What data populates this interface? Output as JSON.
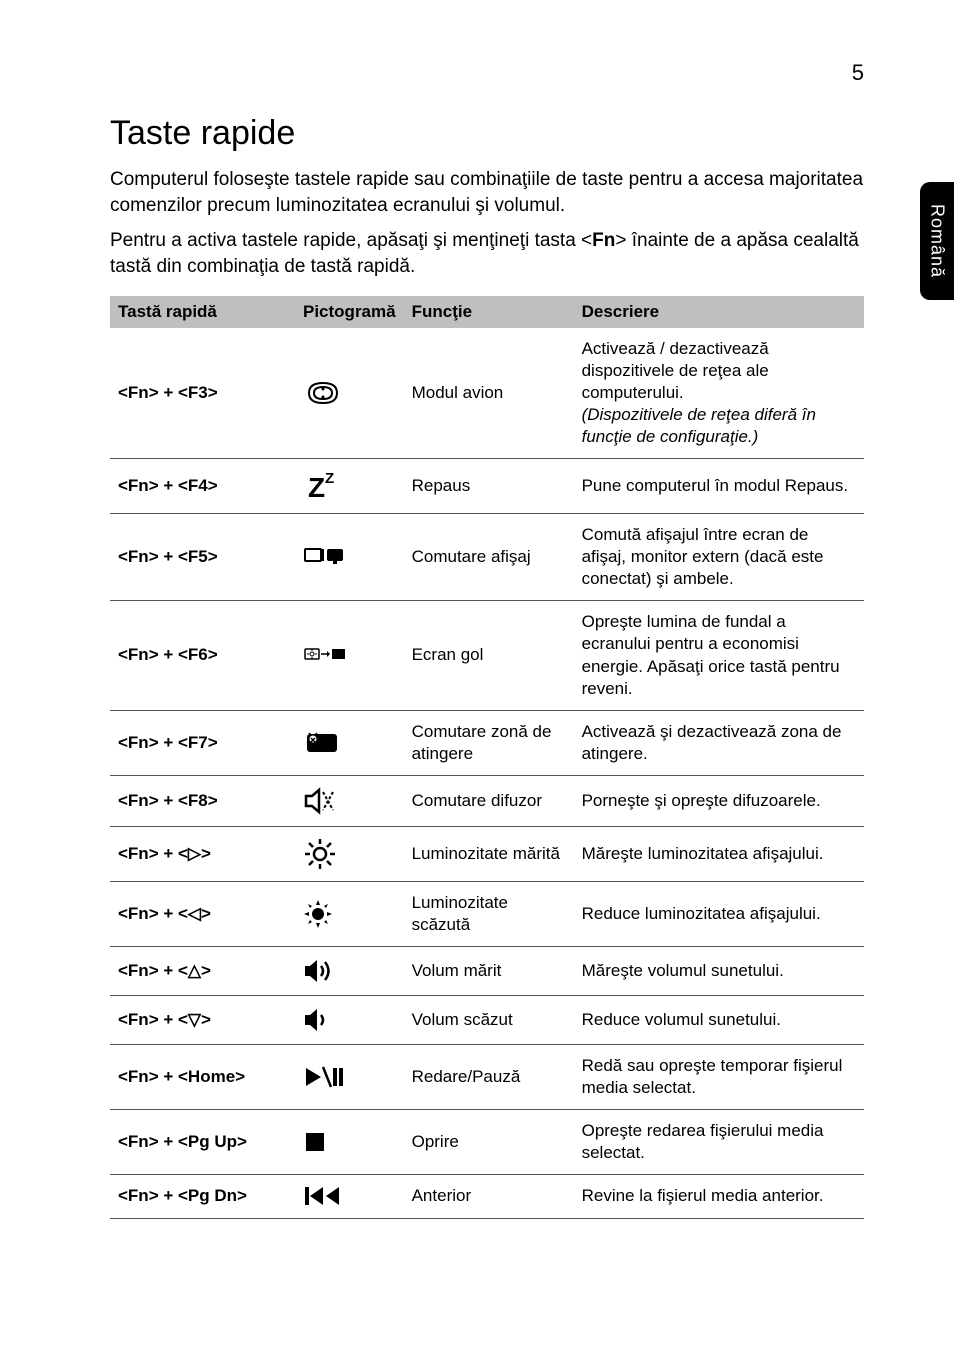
{
  "page_number": "5",
  "side_tab": "Română",
  "heading": "Taste rapide",
  "intro": [
    "Computerul foloseşte tastele rapide sau combinaţiile de taste pentru a accesa majoritatea comenzilor precum luminozitatea ecranului şi volumul.",
    "Pentru a activa tastele rapide, apăsaţi şi menţineţi tasta <__BOLD__Fn__ENDBOLD__> înainte de a apăsa cealaltă tastă din combinaţia de tastă rapidă."
  ],
  "table": {
    "headers": [
      "Tastă rapidă",
      "Pictogramă",
      "Funcţie",
      "Descriere"
    ],
    "rows": [
      {
        "key": "<Fn> + <F3>",
        "icon": "airplane",
        "func": "Modul avion",
        "desc": "Activează / dezactivează dispozitivele de reţea ale computerului.\n__ITALIC__(Dispozitivele de reţea diferă în funcţie de configuraţie.)__ENDITALIC__"
      },
      {
        "key": "<Fn> + <F4>",
        "icon": "sleep",
        "func": "Repaus",
        "desc": "Pune computerul în modul Repaus."
      },
      {
        "key": "<Fn> + <F5>",
        "icon": "display-switch",
        "func": "Comutare afişaj",
        "desc": "Comută afişajul între ecran de afişaj, monitor extern (dacă este conectat) şi ambele."
      },
      {
        "key": "<Fn> + <F6>",
        "icon": "blank-screen",
        "func": "Ecran gol",
        "desc": "Opreşte lumina de fundal a ecranului pentru a economisi energie. Apăsaţi orice tastă pentru reveni."
      },
      {
        "key": "<Fn> + <F7>",
        "icon": "touchpad",
        "func": "Comutare zonă de atingere",
        "desc": "Activează şi dezactivează zona de atingere."
      },
      {
        "key": "<Fn> + <F8>",
        "icon": "speaker-toggle",
        "func": "Comutare difuzor",
        "desc": "Porneşte şi opreşte difuzoarele."
      },
      {
        "key": "<Fn> + <▷>",
        "icon": "brightness-up",
        "func": "Luminozitate mărită",
        "desc": "Măreşte luminozitatea afişajului."
      },
      {
        "key": "<Fn> + <◁>",
        "icon": "brightness-down",
        "func": "Luminozitate scăzută",
        "desc": "Reduce luminozitatea afişajului."
      },
      {
        "key": "<Fn> + <△>",
        "icon": "volume-up",
        "func": "Volum mărit",
        "desc": "Măreşte volumul sunetului."
      },
      {
        "key": "<Fn> + <▽>",
        "icon": "volume-down",
        "func": "Volum scăzut",
        "desc": "Reduce volumul sunetului."
      },
      {
        "key": "<Fn> + <Home>",
        "icon": "play-pause",
        "func": "Redare/Pauză",
        "desc": "Redă sau opreşte temporar fişierul media selectat."
      },
      {
        "key": "<Fn> + <Pg Up>",
        "icon": "stop",
        "func": "Oprire",
        "desc": "Opreşte redarea fişierului media selectat."
      },
      {
        "key": "<Fn> + <Pg Dn>",
        "icon": "prev",
        "func": "Anterior",
        "desc": "Revine la fişierul media anterior."
      }
    ]
  },
  "icons_svg": {
    "airplane": "<svg width='40' height='28' viewBox='0 0 40 28'><path d='M6 14 Q6 4 20 4 Q34 4 34 14 Q34 24 20 24 Q6 24 6 14 Z' fill='none' stroke='#000' stroke-width='2'/><path d='M11 14 Q11 8 20 8 Q29 8 29 14 Q29 20 20 20 Q11 20 11 14 Z' fill='none' stroke='#000' stroke-width='2'/><circle cx='20' cy='10' r='1.5' fill='#000'/><circle cx='20' cy='18' r='1.5' fill='#000'/></svg>",
    "sleep": "<svg width='40' height='34' viewBox='0 0 40 34'><text x='5' y='28' font-family='Arial' font-size='28' font-weight='bold'>Z</text><text x='22' y='14' font-family='Arial' font-size='15' font-weight='bold'>Z</text></svg>",
    "display-switch": "<svg width='44' height='24' viewBox='0 0 44 24'><rect x='2' y='4' width='16' height='12' rx='1' fill='none' stroke='#000' stroke-width='2'/><line x1='20' y1='4' x2='20' y2='16' stroke='#000' stroke-width='2'/><rect x='24' y='4' width='16' height='12' rx='2' fill='#000'/><rect x='30' y='16' width='4' height='3' fill='#000'/></svg>",
    "blank-screen": "<svg width='44' height='24' viewBox='0 0 44 24'><rect x='2' y='5' width='14' height='10' rx='1' fill='none' stroke='#000' stroke-width='1.5'/><circle cx='9' cy='10' r='2' fill='none' stroke='#000' stroke-width='1'/><path d='M9 7 L9 5 M9 13 L9 15 M6 10 L4 10 M12 10 L14 10' stroke='#000' stroke-width='1'/><path d='M18 10 L24 10' stroke='#000' stroke-width='1.5'/><path d='M24 7 L27 10 L24 13' fill='#000'/><rect x='29' y='5' width='13' height='10' fill='#000'/></svg>",
    "touchpad": "<svg width='40' height='26' viewBox='0 0 40 26'><rect x='4' y='4' width='30' height='18' rx='3' fill='#000'/><circle cx='10' cy='9' r='3.5' fill='#fff'/><path d='M8 8 L12 12 M12 8 L8 12' stroke='#000' stroke-width='1.5'/><path d='M8 5 L6 3 M12 5 L14 3 M6 11 L4 13' stroke='#000' stroke-width='1.5'/></svg>",
    "speaker-toggle": "<svg width='34' height='30' viewBox='0 0 34 30'><path d='M3 10 L9 10 L16 4 L16 26 L9 20 L3 20 Z' fill='none' stroke='#000' stroke-width='2.5'/><path d='M20 6 L30 24 M30 6 L20 24' stroke='#000' stroke-width='2' stroke-dasharray='3,2'/></svg>",
    "brightness-up": "<svg width='34' height='34' viewBox='0 0 34 34'><circle cx='17' cy='17' r='6' fill='none' stroke='#000' stroke-width='2.5'/><g stroke='#000' stroke-width='2.5'><line x1='17' y1='2' x2='17' y2='7'/><line x1='17' y1='27' x2='17' y2='32'/><line x1='2' y1='17' x2='7' y2='17'/><line x1='27' y1='17' x2='32' y2='17'/><line x1='6' y1='6' x2='10' y2='10'/><line x1='24' y1='24' x2='28' y2='28'/><line x1='6' y1='28' x2='10' y2='24'/><line x1='24' y1='10' x2='28' y2='6'/></g></svg>",
    "brightness-down": "<svg width='30' height='30' viewBox='0 0 30 30'><circle cx='15' cy='15' r='6' fill='#000'/><g fill='#000'><polygon points='15,1 17,6 13,6'/><polygon points='15,29 17,24 13,24'/><polygon points='1,15 6,13 6,17'/><polygon points='29,15 24,13 24,17'/><polygon points='5,5 9,7 7,9'/><polygon points='25,25 21,23 23,21'/><polygon points='5,25 7,21 9,23'/><polygon points='25,5 23,9 21,7'/></g></svg>",
    "volume-up": "<svg width='34' height='28' viewBox='0 0 34 28'><path d='M2 9 L7 9 L14 3 L14 25 L7 19 L2 19 Z' fill='#000'/><path d='M18 9 Q22 14 18 19' fill='none' stroke='#000' stroke-width='2.5'/><path d='M22 5 Q29 14 22 23' fill='none' stroke='#000' stroke-width='2.5'/></svg>",
    "volume-down": "<svg width='30' height='28' viewBox='0 0 30 28'><path d='M2 9 L7 9 L14 3 L14 25 L7 19 L2 19 Z' fill='#000'/><path d='M18 9 Q22 14 18 19' fill='none' stroke='#000' stroke-width='2.5'/></svg>",
    "play-pause": "<svg width='40' height='24' viewBox='0 0 40 24'><polygon points='3,3 3,21 18,12' fill='#000'/><line x1='20' y1='2' x2='28' y2='22' stroke='#000' stroke-width='2.5'/><rect x='30' y='3' width='4' height='18' fill='#000'/><rect x='36' y='3' width='4' height='18' fill='#000'/></svg>",
    "stop": "<svg width='24' height='24' viewBox='0 0 24 24'><rect x='3' y='3' width='18' height='18' fill='#000'/></svg>",
    "prev": "<svg width='38' height='22' viewBox='0 0 38 22'><rect x='2' y='2' width='4' height='18' fill='#000'/><polygon points='20,2 20,20 7,11' fill='#000'/><polygon points='36,2 36,20 23,11' fill='#000'/></svg>"
  },
  "colors": {
    "header_bg": "#bfbfbf",
    "border": "#555555",
    "text": "#000000",
    "bg": "#ffffff",
    "tab_bg": "#000000",
    "tab_text": "#ffffff"
  }
}
